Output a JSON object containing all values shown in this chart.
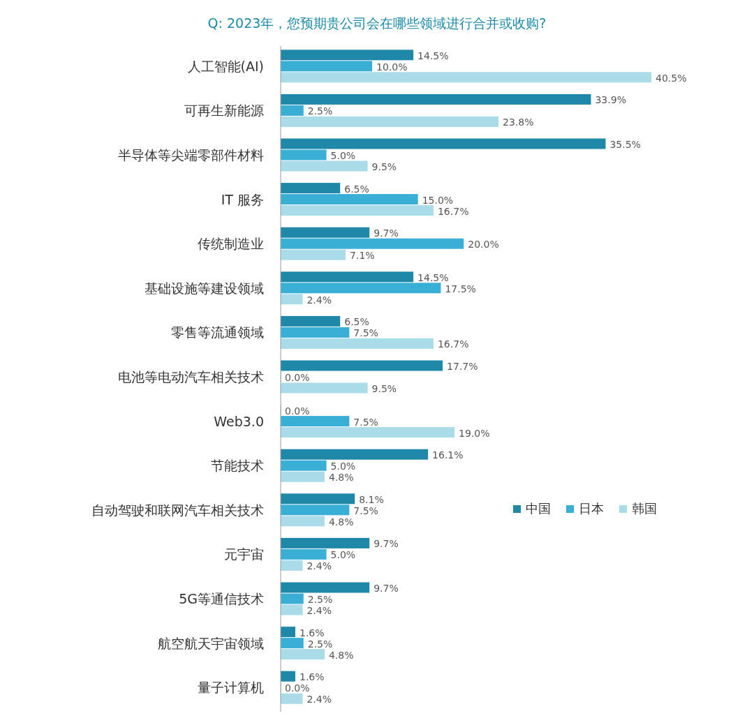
{
  "chart_data": {
    "type": "bar",
    "orientation": "horizontal",
    "title": "Q:  2023年，您预期贵公司会在哪些领域进行合并或收购?",
    "legend": "right",
    "categories": [
      "人工智能(AI)",
      "可再生新能源",
      "半导体等尖端零部件材料",
      "IT 服务",
      "传统制造业",
      "基础设施等建设领域",
      "零售等流通领域",
      "电池等电动汽车相关技术",
      "Web3.0",
      "节能技术",
      "自动驾驶和联网汽车相关技术",
      "元宇宙",
      "5G等通信技术",
      "航空航天宇宙领域",
      "量子计算机"
    ],
    "series": [
      {
        "name": "中国",
        "color": "#1f88a8",
        "values": [
          14.5,
          33.9,
          35.5,
          6.5,
          9.7,
          14.5,
          6.5,
          17.7,
          0.0,
          16.1,
          8.1,
          9.7,
          9.7,
          1.6,
          1.6
        ],
        "value_labels": [
          "14.5%",
          "33.9%",
          "35.5%",
          "6.5%",
          "9.7%",
          "14.5%",
          "6.5%",
          "17.7%",
          "0.0%",
          "16.1%",
          "8.1%",
          "9.7%",
          "9.7%",
          "1.6%",
          "1.6%"
        ]
      },
      {
        "name": "日本",
        "color": "#3aafd6",
        "values": [
          10.0,
          2.5,
          5.0,
          15.0,
          20.0,
          17.5,
          7.5,
          0.0,
          7.5,
          5.0,
          7.5,
          5.0,
          2.5,
          2.5,
          0.0
        ],
        "value_labels": [
          "10.0%",
          "2.5%",
          "5.0%",
          "15.0%",
          "20.0%",
          "17.5%",
          "7.5%",
          "0.0%",
          "7.5%",
          "5.0%",
          "7.5%",
          "5.0%",
          "2.5%",
          "2.5%",
          "0.0%"
        ]
      },
      {
        "name": "韩国",
        "color": "#a9dce8",
        "values": [
          40.5,
          23.8,
          9.5,
          16.7,
          7.1,
          2.4,
          16.7,
          9.5,
          19.0,
          4.8,
          4.8,
          2.4,
          2.4,
          4.8,
          2.4
        ],
        "value_labels": [
          "40.5%",
          "23.8%",
          "9.5%",
          "16.7%",
          "7.1%",
          "2.4%",
          "16.7%",
          "9.5%",
          "19.0%",
          "4.8%",
          "4.8%",
          "2.4%",
          "2.4%",
          "4.8%",
          "2.4%"
        ]
      }
    ]
  }
}
